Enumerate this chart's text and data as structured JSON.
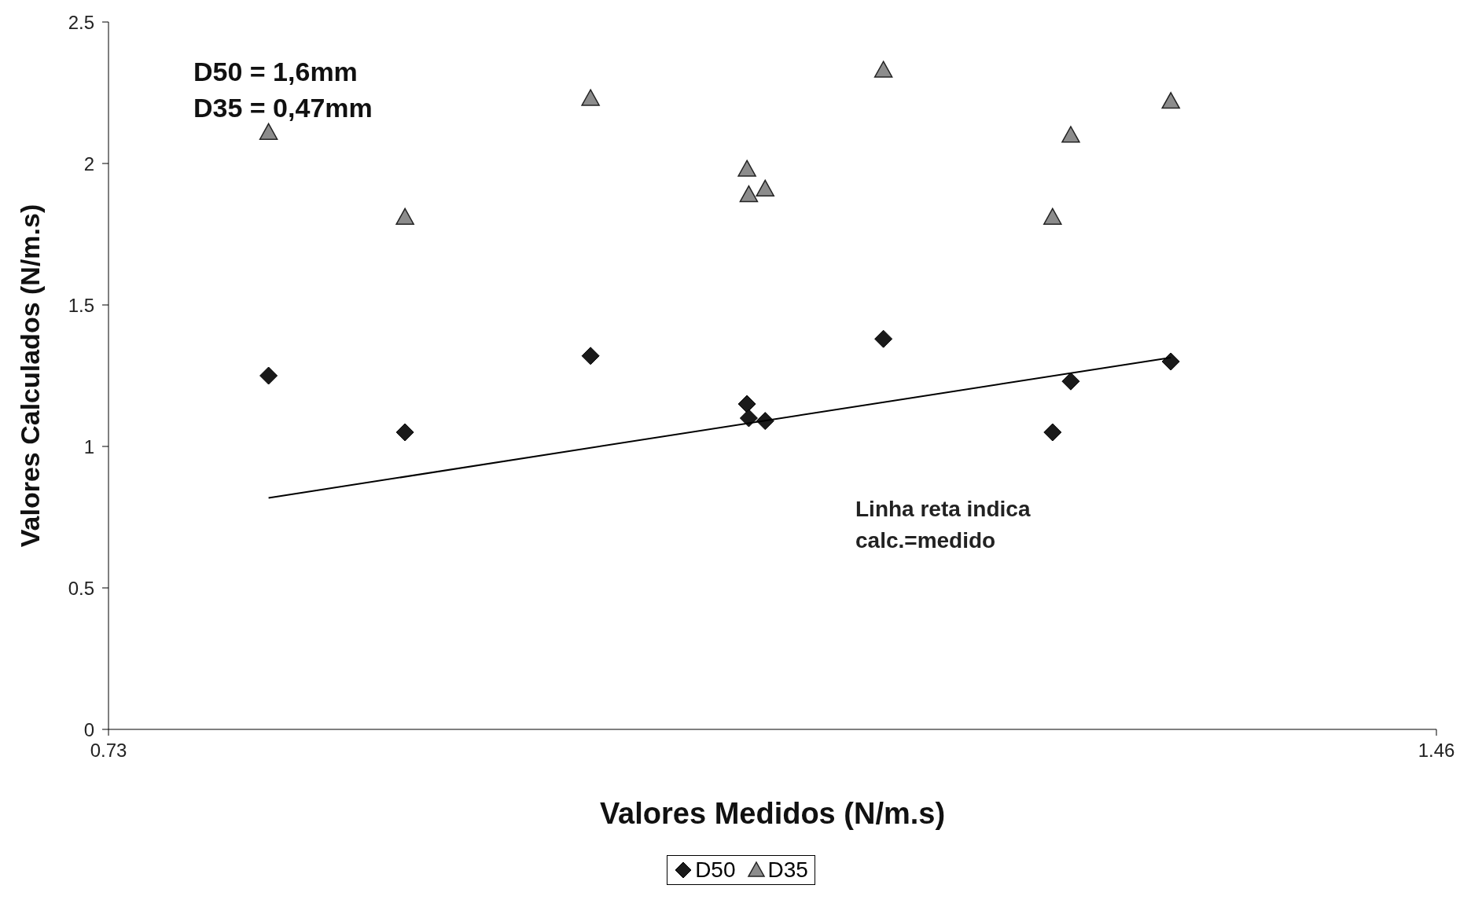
{
  "chart_data": {
    "type": "scatter",
    "xlabel": "Valores Medidos (N/m.s)",
    "ylabel": "Valores Calculados (N/m.s)",
    "xlim": [
      0.73,
      1.46
    ],
    "xticks": [
      0.73,
      1.46
    ],
    "ylim": [
      0,
      2.5
    ],
    "yticks": [
      0,
      0.5,
      1,
      1.5,
      2,
      2.5
    ],
    "grid": false,
    "legend": "bottom",
    "series": [
      {
        "name": "D50",
        "color": "#1a1a1a",
        "marker": "diamond",
        "x": [
          0.818,
          0.893,
          0.995,
          1.081,
          1.082,
          1.091,
          1.156,
          1.249,
          1.259,
          1.314
        ],
        "values": [
          1.25,
          1.05,
          1.32,
          1.15,
          1.1,
          1.09,
          1.38,
          1.05,
          1.23,
          1.3
        ]
      },
      {
        "name": "D35",
        "color": "#8c8c8c",
        "marker": "triangle",
        "x": [
          0.818,
          0.893,
          0.995,
          1.081,
          1.082,
          1.091,
          1.156,
          1.249,
          1.259,
          1.314
        ],
        "values": [
          2.11,
          1.81,
          2.23,
          1.98,
          1.89,
          1.91,
          2.33,
          1.81,
          2.1,
          2.22
        ]
      },
      {
        "type": "line",
        "color": "#000000",
        "marker": "none",
        "x": [
          0.818,
          1.314
        ],
        "values": [
          0.818,
          1.314
        ]
      }
    ],
    "annotations": [
      "D50 = 1,6mm",
      "D35 = 0,47mm",
      "Linha reta indica calc.=medido"
    ]
  }
}
